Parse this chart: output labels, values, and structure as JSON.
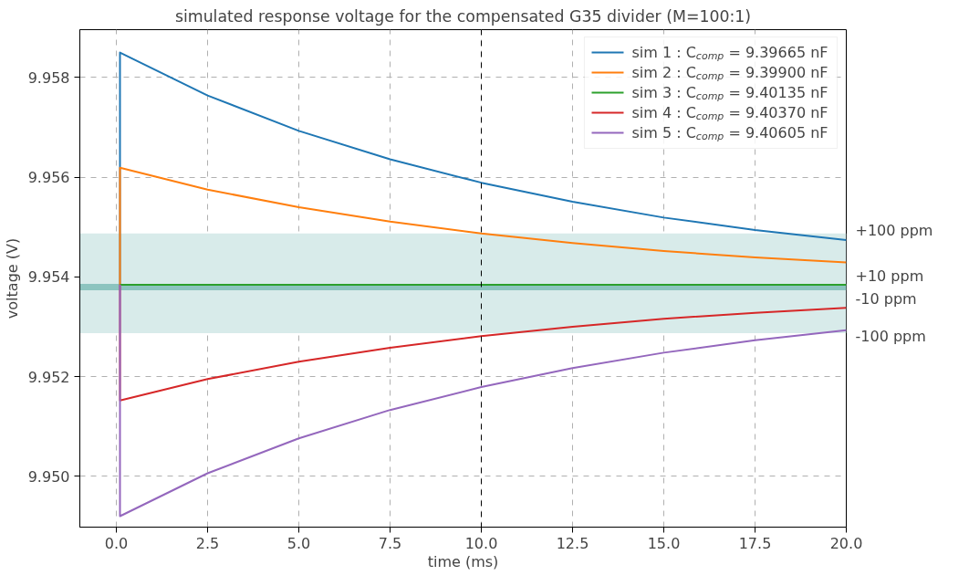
{
  "chart_data": {
    "type": "line",
    "title": "simulated response voltage for the compensated G35 divider (M=100:1)",
    "xlabel": "time (ms)",
    "ylabel": "voltage (V)",
    "x": [
      0.1,
      0.1,
      2.5,
      5,
      7.5,
      10,
      12.5,
      15,
      17.5,
      20
    ],
    "series": [
      {
        "name": "sim 1 : C$_{comp}$ = 9.39665 nF",
        "color": "#1f77b4",
        "values": [
          9.95384,
          9.9585,
          9.95764,
          9.95693,
          9.95636,
          9.95589,
          9.95551,
          9.95519,
          9.95494,
          9.95474
        ]
      },
      {
        "name": "sim 2 : C$_{comp}$ = 9.39900 nF",
        "color": "#ff7f0e",
        "values": [
          9.95384,
          9.95619,
          9.95575,
          9.9554,
          9.95511,
          9.95487,
          9.95468,
          9.95452,
          9.95439,
          9.95429
        ]
      },
      {
        "name": "sim 3 : C$_{comp}$ = 9.40135 nF",
        "color": "#2ca02c",
        "values": [
          9.95384,
          9.95384,
          9.95384,
          9.95384,
          9.95384,
          9.95384,
          9.95384,
          9.95384,
          9.95384,
          9.95384
        ]
      },
      {
        "name": "sim 4 : C$_{comp}$ = 9.40370 nF",
        "color": "#d62728",
        "values": [
          9.95384,
          9.95152,
          9.95195,
          9.9523,
          9.95258,
          9.95281,
          9.953,
          9.95316,
          9.95328,
          9.95338
        ]
      },
      {
        "name": "sim 5 : C$_{comp}$ = 9.40605 nF",
        "color": "#9467bd",
        "values": [
          9.95384,
          9.9492,
          9.95006,
          9.95076,
          9.95133,
          9.95179,
          9.95217,
          9.95248,
          9.95273,
          9.95293
        ]
      }
    ],
    "xlim": [
      -1,
      20
    ],
    "ylim": [
      9.94898,
      9.95896
    ],
    "xticks": [
      {
        "value": 0,
        "label": "0.0"
      },
      2.5,
      {
        "value": 5,
        "label": "5.0"
      },
      7.5,
      {
        "value": 10,
        "label": "10.0"
      },
      12.5,
      {
        "value": 15,
        "label": "15.0"
      },
      17.5,
      {
        "value": 20,
        "label": "20.0"
      }
    ],
    "yticks": [
      {
        "value": 9.95,
        "label": "9.950"
      },
      9.952,
      9.954,
      9.956,
      9.958
    ],
    "bands": [
      {
        "axis": "y",
        "from": 9.95287,
        "to": 9.95487,
        "color": "#d8ebea"
      },
      {
        "axis": "y",
        "from": 9.95373,
        "to": 9.95386,
        "color": "#8cc4bf"
      }
    ],
    "ref_lines": [
      {
        "axis": "x",
        "value": 10,
        "color": "#000000",
        "line_style": "dashed"
      }
    ],
    "annotations": [
      "+100 ppm",
      "+10 ppm",
      "-10 ppm",
      "-100 ppm"
    ],
    "grid": true,
    "legend": "top right",
    "line_style": "solid",
    "marker": "none"
  }
}
